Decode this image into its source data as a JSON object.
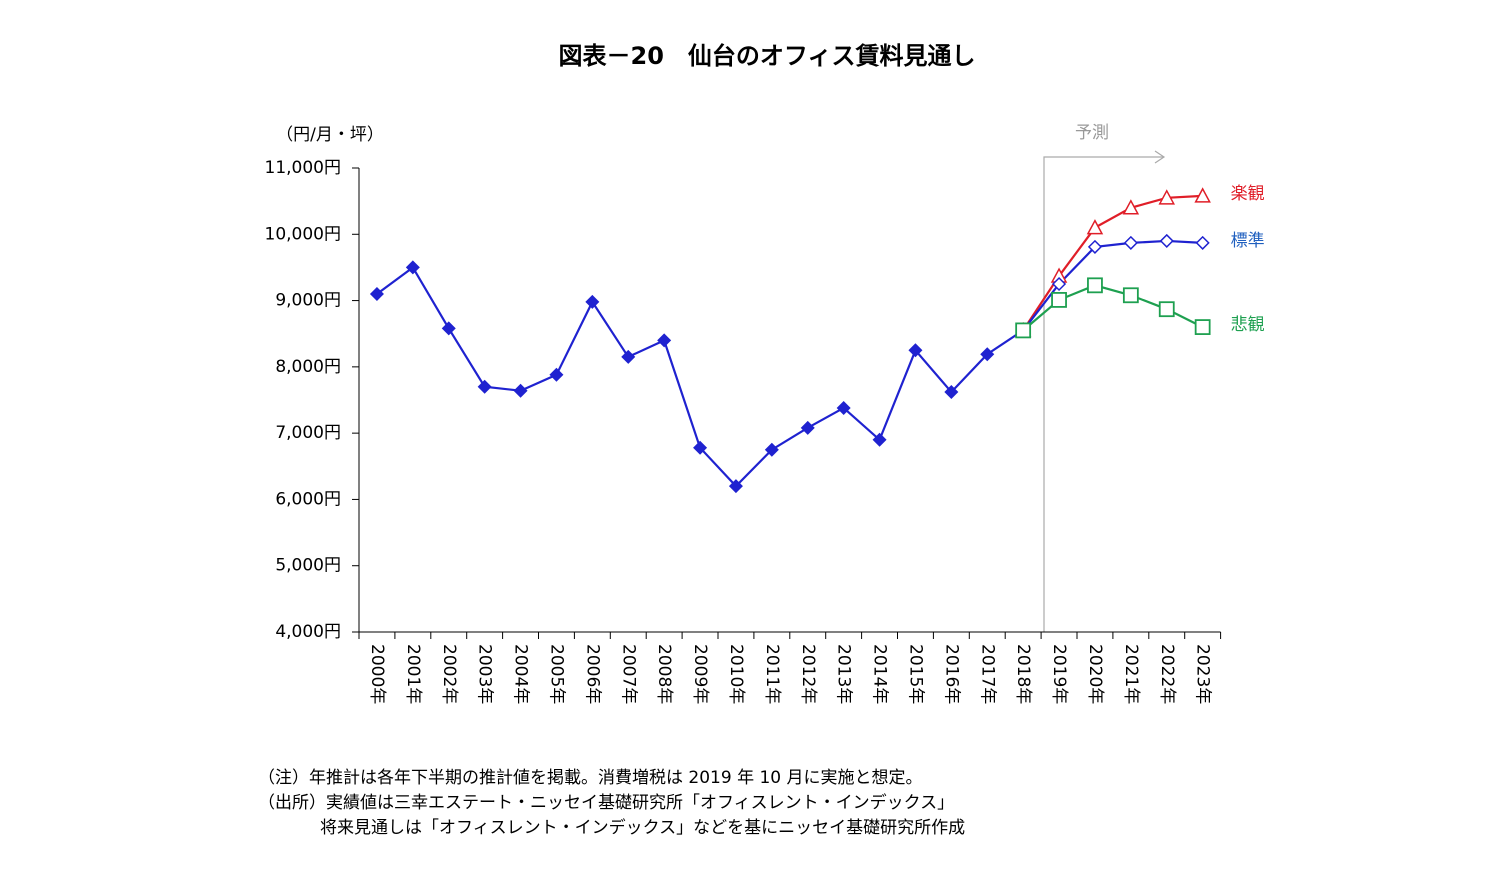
{
  "chart_data": {
    "type": "line",
    "title": "図表－20　仙台のオフィス賃料見通し",
    "y_axis_label": "（円/月・坪）",
    "annotation": "予測",
    "categories": [
      "2000年",
      "2001年",
      "2002年",
      "2003年",
      "2004年",
      "2005年",
      "2006年",
      "2007年",
      "2008年",
      "2009年",
      "2010年",
      "2011年",
      "2012年",
      "2013年",
      "2014年",
      "2015年",
      "2016年",
      "2017年",
      "2018年",
      "2019年",
      "2020年",
      "2021年",
      "2022年",
      "2023年"
    ],
    "series": [
      {
        "color": "#1f22d0",
        "marker": "filled-diamond",
        "values": [
          9100,
          9500,
          8580,
          7700,
          7640,
          7880,
          8980,
          8150,
          8400,
          6780,
          6200,
          6750,
          7080,
          7380,
          6900,
          8250,
          7620,
          8190,
          8550,
          null,
          null,
          null,
          null,
          null
        ]
      },
      {
        "name": "楽観",
        "color": "#e01e28",
        "marker": "triangle",
        "values": [
          null,
          null,
          null,
          null,
          null,
          null,
          null,
          null,
          null,
          null,
          null,
          null,
          null,
          null,
          null,
          null,
          null,
          null,
          8550,
          9370,
          10100,
          10400,
          10550,
          10580
        ]
      },
      {
        "name": "標準",
        "color": "#1f22d0",
        "label_color": "#1f5fbf",
        "marker": "diamond",
        "values": [
          null,
          null,
          null,
          null,
          null,
          null,
          null,
          null,
          null,
          null,
          null,
          null,
          null,
          null,
          null,
          null,
          null,
          null,
          8550,
          9250,
          9810,
          9870,
          9900,
          9870
        ]
      },
      {
        "name": "悲観",
        "color": "#1ea050",
        "marker": "square",
        "values": [
          null,
          null,
          null,
          null,
          null,
          null,
          null,
          null,
          null,
          null,
          null,
          null,
          null,
          null,
          null,
          null,
          null,
          null,
          8550,
          9010,
          9230,
          9080,
          8870,
          8600
        ]
      }
    ],
    "ylim": [
      4000,
      11000
    ],
    "yticks": [
      {
        "value": 4000,
        "label": "4,000円"
      },
      {
        "value": 5000,
        "label": "5,000円"
      },
      {
        "value": 6000,
        "label": "6,000円"
      },
      {
        "value": 7000,
        "label": "7,000円"
      },
      {
        "value": 8000,
        "label": "8,000円"
      },
      {
        "value": 9000,
        "label": "9,000円"
      },
      {
        "value": 10000,
        "label": "10,000円"
      },
      {
        "value": 11000,
        "label": "11,000円"
      }
    ],
    "notes": [
      "（注）年推計は各年下半期の推計値を掲載。消費増税は 2019 年 10 月に実施と想定。",
      "（出所）実績値は三幸エステート・ニッセイ基礎研究所「オフィスレント・インデックス」",
      "将来見通しは「オフィスレント・インデックス」などを基にニッセイ基礎研究所作成"
    ]
  }
}
